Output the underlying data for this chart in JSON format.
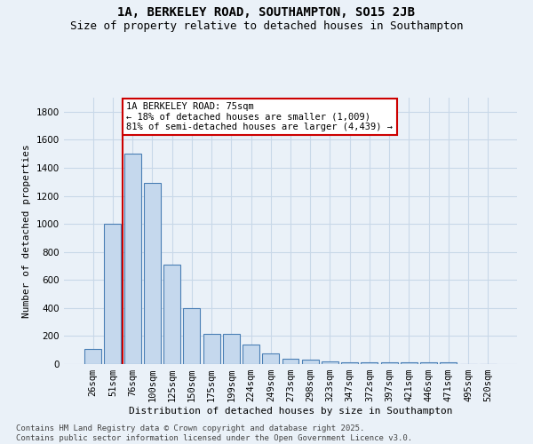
{
  "title": "1A, BERKELEY ROAD, SOUTHAMPTON, SO15 2JB",
  "subtitle": "Size of property relative to detached houses in Southampton",
  "xlabel": "Distribution of detached houses by size in Southampton",
  "ylabel": "Number of detached properties",
  "categories": [
    "26sqm",
    "51sqm",
    "76sqm",
    "100sqm",
    "125sqm",
    "150sqm",
    "175sqm",
    "199sqm",
    "224sqm",
    "249sqm",
    "273sqm",
    "298sqm",
    "323sqm",
    "347sqm",
    "372sqm",
    "397sqm",
    "421sqm",
    "446sqm",
    "471sqm",
    "495sqm",
    "520sqm"
  ],
  "values": [
    110,
    1000,
    1500,
    1290,
    710,
    400,
    215,
    215,
    140,
    75,
    40,
    30,
    20,
    15,
    10,
    10,
    10,
    15,
    10,
    0,
    0
  ],
  "bar_color": "#c5d8ed",
  "bar_edge_color": "#4a7fb5",
  "highlight_index": 2,
  "highlight_line_color": "#cc0000",
  "annotation_text": "1A BERKELEY ROAD: 75sqm\n← 18% of detached houses are smaller (1,009)\n81% of semi-detached houses are larger (4,439) →",
  "annotation_box_color": "#ffffff",
  "annotation_box_edge_color": "#cc0000",
  "ylim": [
    0,
    1900
  ],
  "yticks": [
    0,
    200,
    400,
    600,
    800,
    1000,
    1200,
    1400,
    1600,
    1800
  ],
  "grid_color": "#c8d8e8",
  "background_color": "#eaf1f8",
  "footer": "Contains HM Land Registry data © Crown copyright and database right 2025.\nContains public sector information licensed under the Open Government Licence v3.0.",
  "title_fontsize": 10,
  "subtitle_fontsize": 9,
  "axis_label_fontsize": 8,
  "tick_fontsize": 7.5,
  "annotation_fontsize": 7.5,
  "footer_fontsize": 6.5
}
